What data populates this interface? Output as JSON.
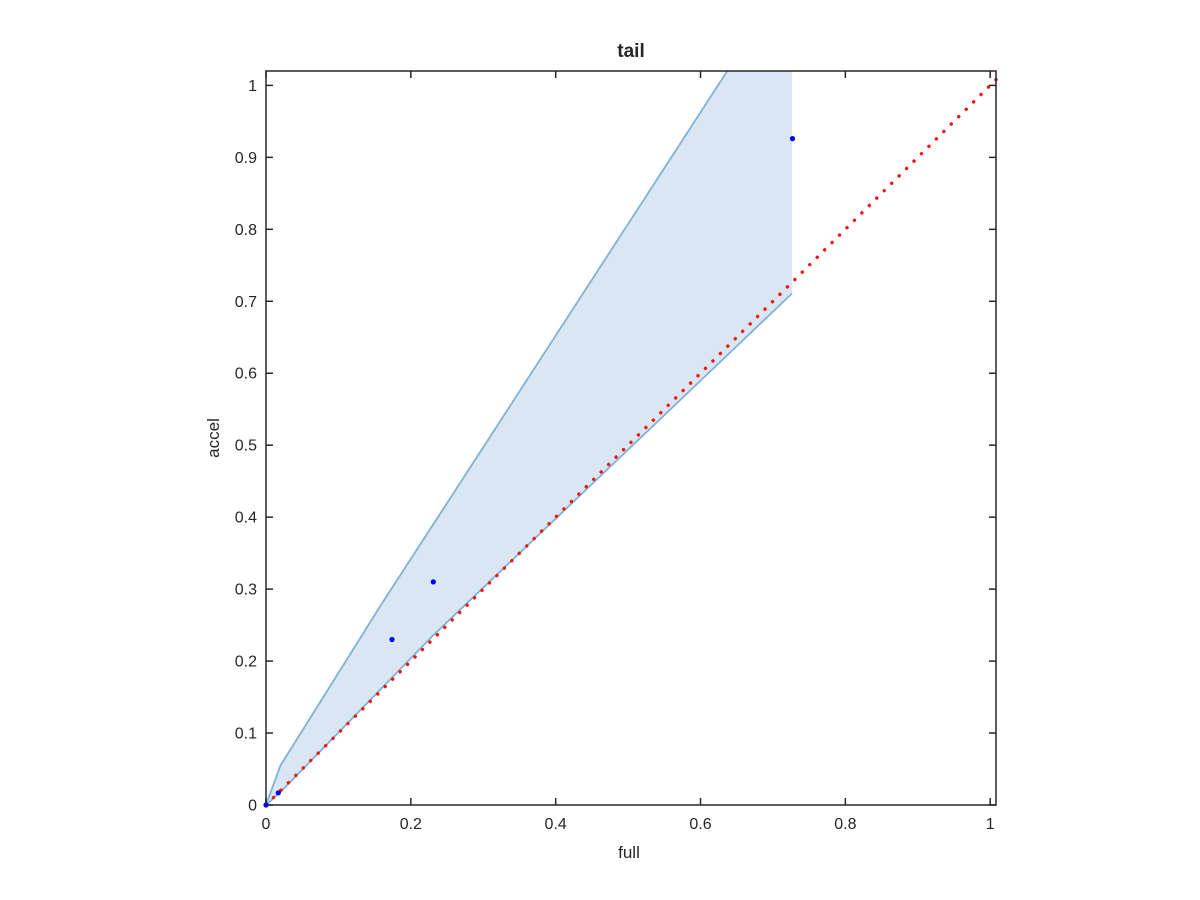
{
  "chart_data": {
    "type": "scatter",
    "title": "tail",
    "xlabel": "full",
    "ylabel": "accel",
    "xlim": [
      0,
      1.008
    ],
    "ylim": [
      0,
      1.02
    ],
    "grid": false,
    "legend": false,
    "axis_color": "#262626",
    "xticks": {
      "values": [
        0,
        0.2,
        0.4,
        0.6,
        0.8,
        1
      ],
      "labels": [
        "0",
        "0.2",
        "0.4",
        "0.6",
        "0.8",
        "1"
      ]
    },
    "yticks": {
      "values": [
        0,
        0.1,
        0.2,
        0.3,
        0.4,
        0.5,
        0.6,
        0.7,
        0.8,
        0.9,
        1
      ],
      "labels": [
        "0",
        "0.1",
        "0.2",
        "0.3",
        "0.4",
        "0.5",
        "0.6",
        "0.7",
        "0.8",
        "0.9",
        "1"
      ]
    },
    "series": [
      {
        "name": "confidence-band",
        "type": "band",
        "fill": "#dae7f2",
        "edge": "#7fb2d9",
        "upper": [
          [
            0,
            0
          ],
          [
            0.02,
            0.055
          ],
          [
            0.16,
            0.28
          ],
          [
            0.637,
            1.02
          ]
        ],
        "lower": [
          [
            0,
            0
          ],
          [
            0.02,
            0.018
          ],
          [
            0.23,
            0.235
          ],
          [
            0.7265,
            0.711
          ]
        ],
        "right_x": 0.7265,
        "top_y": 1.02
      },
      {
        "name": "identity-line",
        "type": "line",
        "style": "dotted",
        "color": "#f31414",
        "points": [
          [
            0,
            0
          ],
          [
            1.008,
            1.008
          ]
        ]
      },
      {
        "name": "data-points",
        "type": "scatter",
        "color": "#0000f0",
        "points": [
          [
            0,
            0
          ],
          [
            0.017,
            0.017
          ],
          [
            0.174,
            0.23
          ],
          [
            0.231,
            0.31
          ],
          [
            0.727,
            0.926
          ]
        ]
      }
    ]
  }
}
